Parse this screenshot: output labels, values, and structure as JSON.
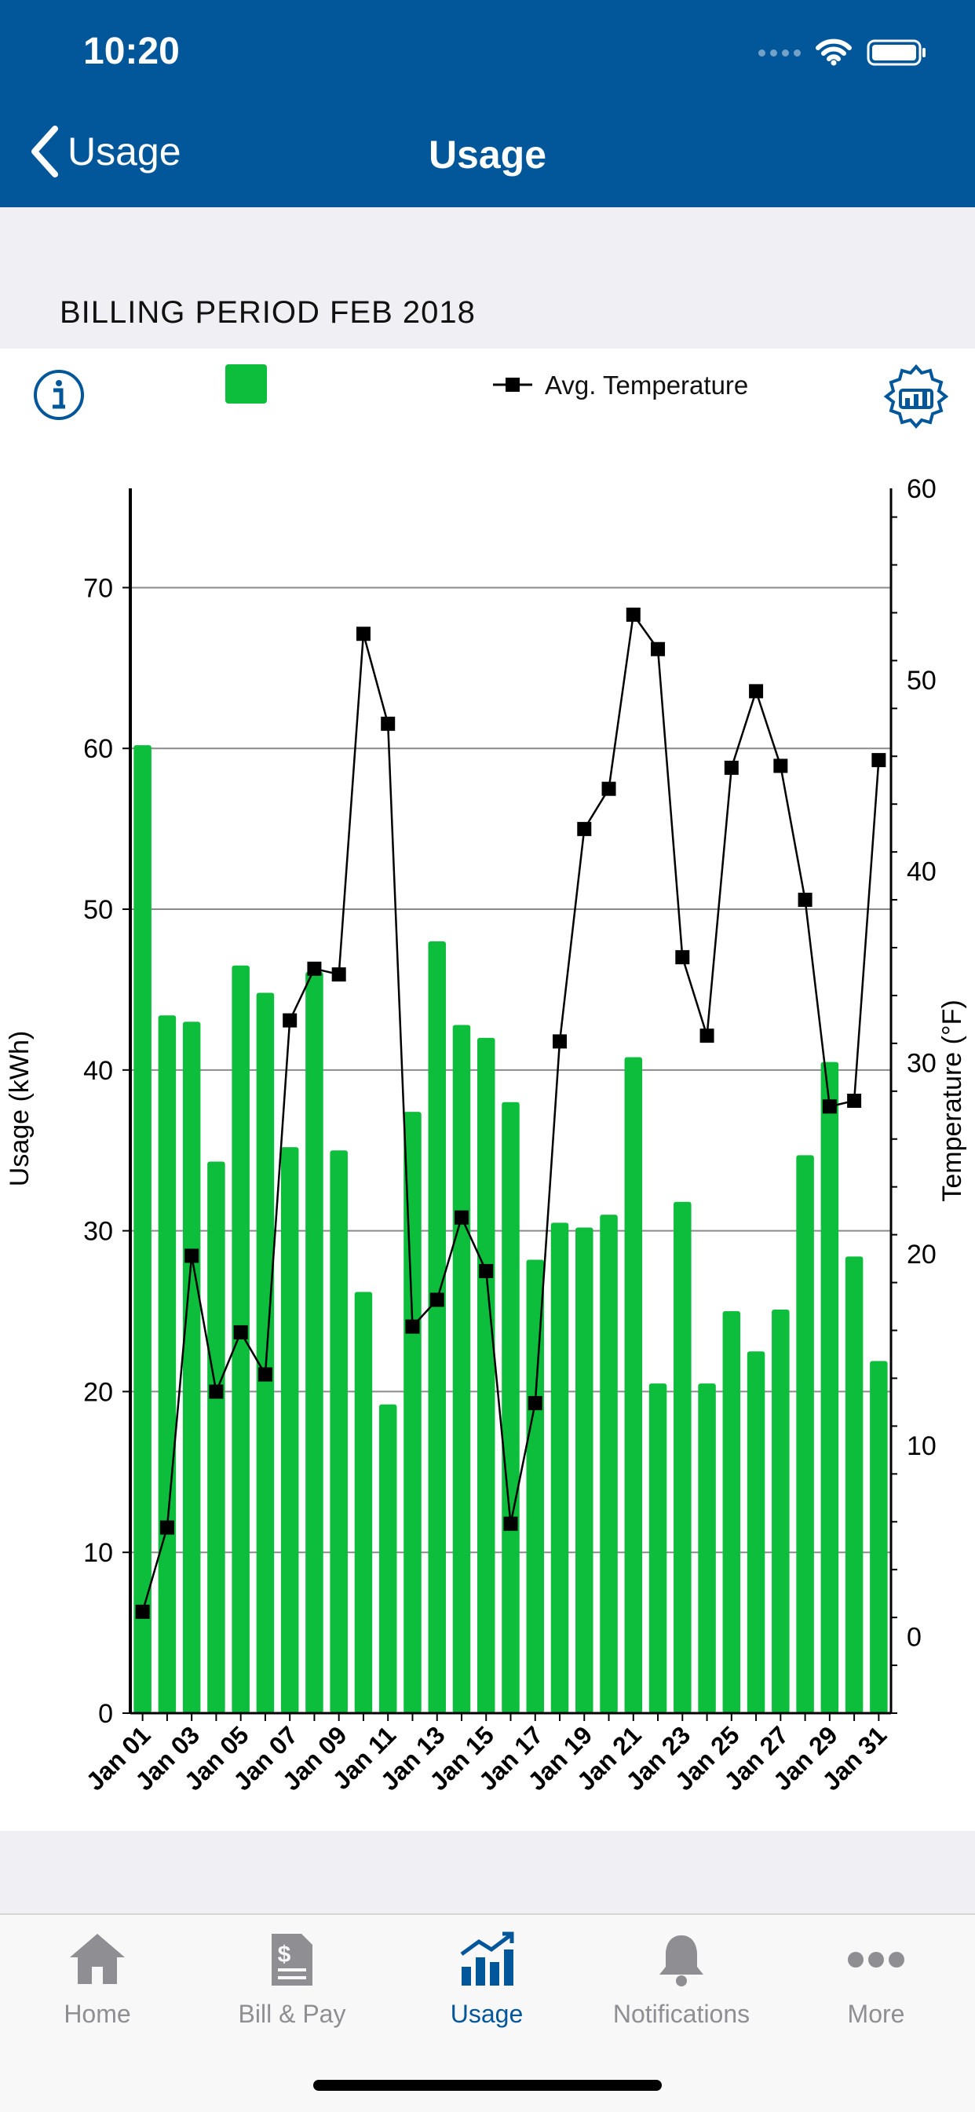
{
  "status_bar": {
    "time": "10:20"
  },
  "nav": {
    "back_label": "Usage",
    "title": "Usage"
  },
  "billing_period": "BILLING PERIOD FEB 2018",
  "legend": {
    "usage_label": "",
    "temperature_label": "Avg. Temperature"
  },
  "colors": {
    "brand": "#02569a",
    "bar": "#0dbd3c",
    "line": "#000000",
    "tab_inactive": "#8e8e93"
  },
  "chart_data": {
    "type": "bar",
    "categories": [
      "Jan 01",
      "Jan 02",
      "Jan 03",
      "Jan 04",
      "Jan 05",
      "Jan 06",
      "Jan 07",
      "Jan 08",
      "Jan 09",
      "Jan 10",
      "Jan 11",
      "Jan 12",
      "Jan 13",
      "Jan 14",
      "Jan 15",
      "Jan 16",
      "Jan 17",
      "Jan 18",
      "Jan 19",
      "Jan 20",
      "Jan 21",
      "Jan 22",
      "Jan 23",
      "Jan 24",
      "Jan 25",
      "Jan 26",
      "Jan 27",
      "Jan 28",
      "Jan 29",
      "Jan 30",
      "Jan 31"
    ],
    "tick_labels": [
      "Jan 01",
      "Jan 03",
      "Jan 05",
      "Jan 07",
      "Jan 09",
      "Jan 11",
      "Jan 13",
      "Jan 15",
      "Jan 17",
      "Jan 19",
      "Jan 21",
      "Jan 23",
      "Jan 25",
      "Jan 27",
      "Jan 29",
      "Jan 31"
    ],
    "series": [
      {
        "name": "",
        "type": "bar",
        "axis": "left",
        "values": [
          60.2,
          43.4,
          43.0,
          34.3,
          46.5,
          44.8,
          35.2,
          46.1,
          35.0,
          26.2,
          19.2,
          37.4,
          48.0,
          42.8,
          42.0,
          38.0,
          28.2,
          30.5,
          30.2,
          31.0,
          40.8,
          20.5,
          31.8,
          20.5,
          25.0,
          22.5,
          25.1,
          34.7,
          40.5,
          28.4,
          21.9
        ]
      },
      {
        "name": "Avg. Temperature",
        "type": "line",
        "axis": "right",
        "values": [
          1.3,
          5.7,
          19.9,
          12.8,
          15.9,
          13.7,
          32.2,
          34.9,
          34.6,
          52.4,
          47.7,
          16.2,
          17.6,
          21.9,
          19.1,
          5.9,
          12.2,
          31.1,
          42.2,
          44.3,
          53.4,
          51.6,
          35.5,
          31.4,
          45.4,
          49.4,
          45.5,
          38.5,
          27.7,
          28.0,
          45.8
        ]
      }
    ],
    "ylabel": "Usage (kWh)",
    "y2label": "Temperature (°F)",
    "ylim": [
      0,
      73
    ],
    "y_ticks": [
      0,
      10,
      20,
      30,
      40,
      50,
      60,
      70
    ],
    "y2lim": [
      -4,
      60
    ],
    "y2_ticks": [
      0,
      10,
      20,
      30,
      40,
      50,
      60
    ],
    "grid": true
  },
  "tabs": [
    {
      "label": "Home",
      "icon": "home-icon",
      "active": false
    },
    {
      "label": "Bill & Pay",
      "icon": "bill-icon",
      "active": false
    },
    {
      "label": "Usage",
      "icon": "usage-icon",
      "active": true
    },
    {
      "label": "Notifications",
      "icon": "bell-icon",
      "active": false
    },
    {
      "label": "More",
      "icon": "more-icon",
      "active": false
    }
  ]
}
